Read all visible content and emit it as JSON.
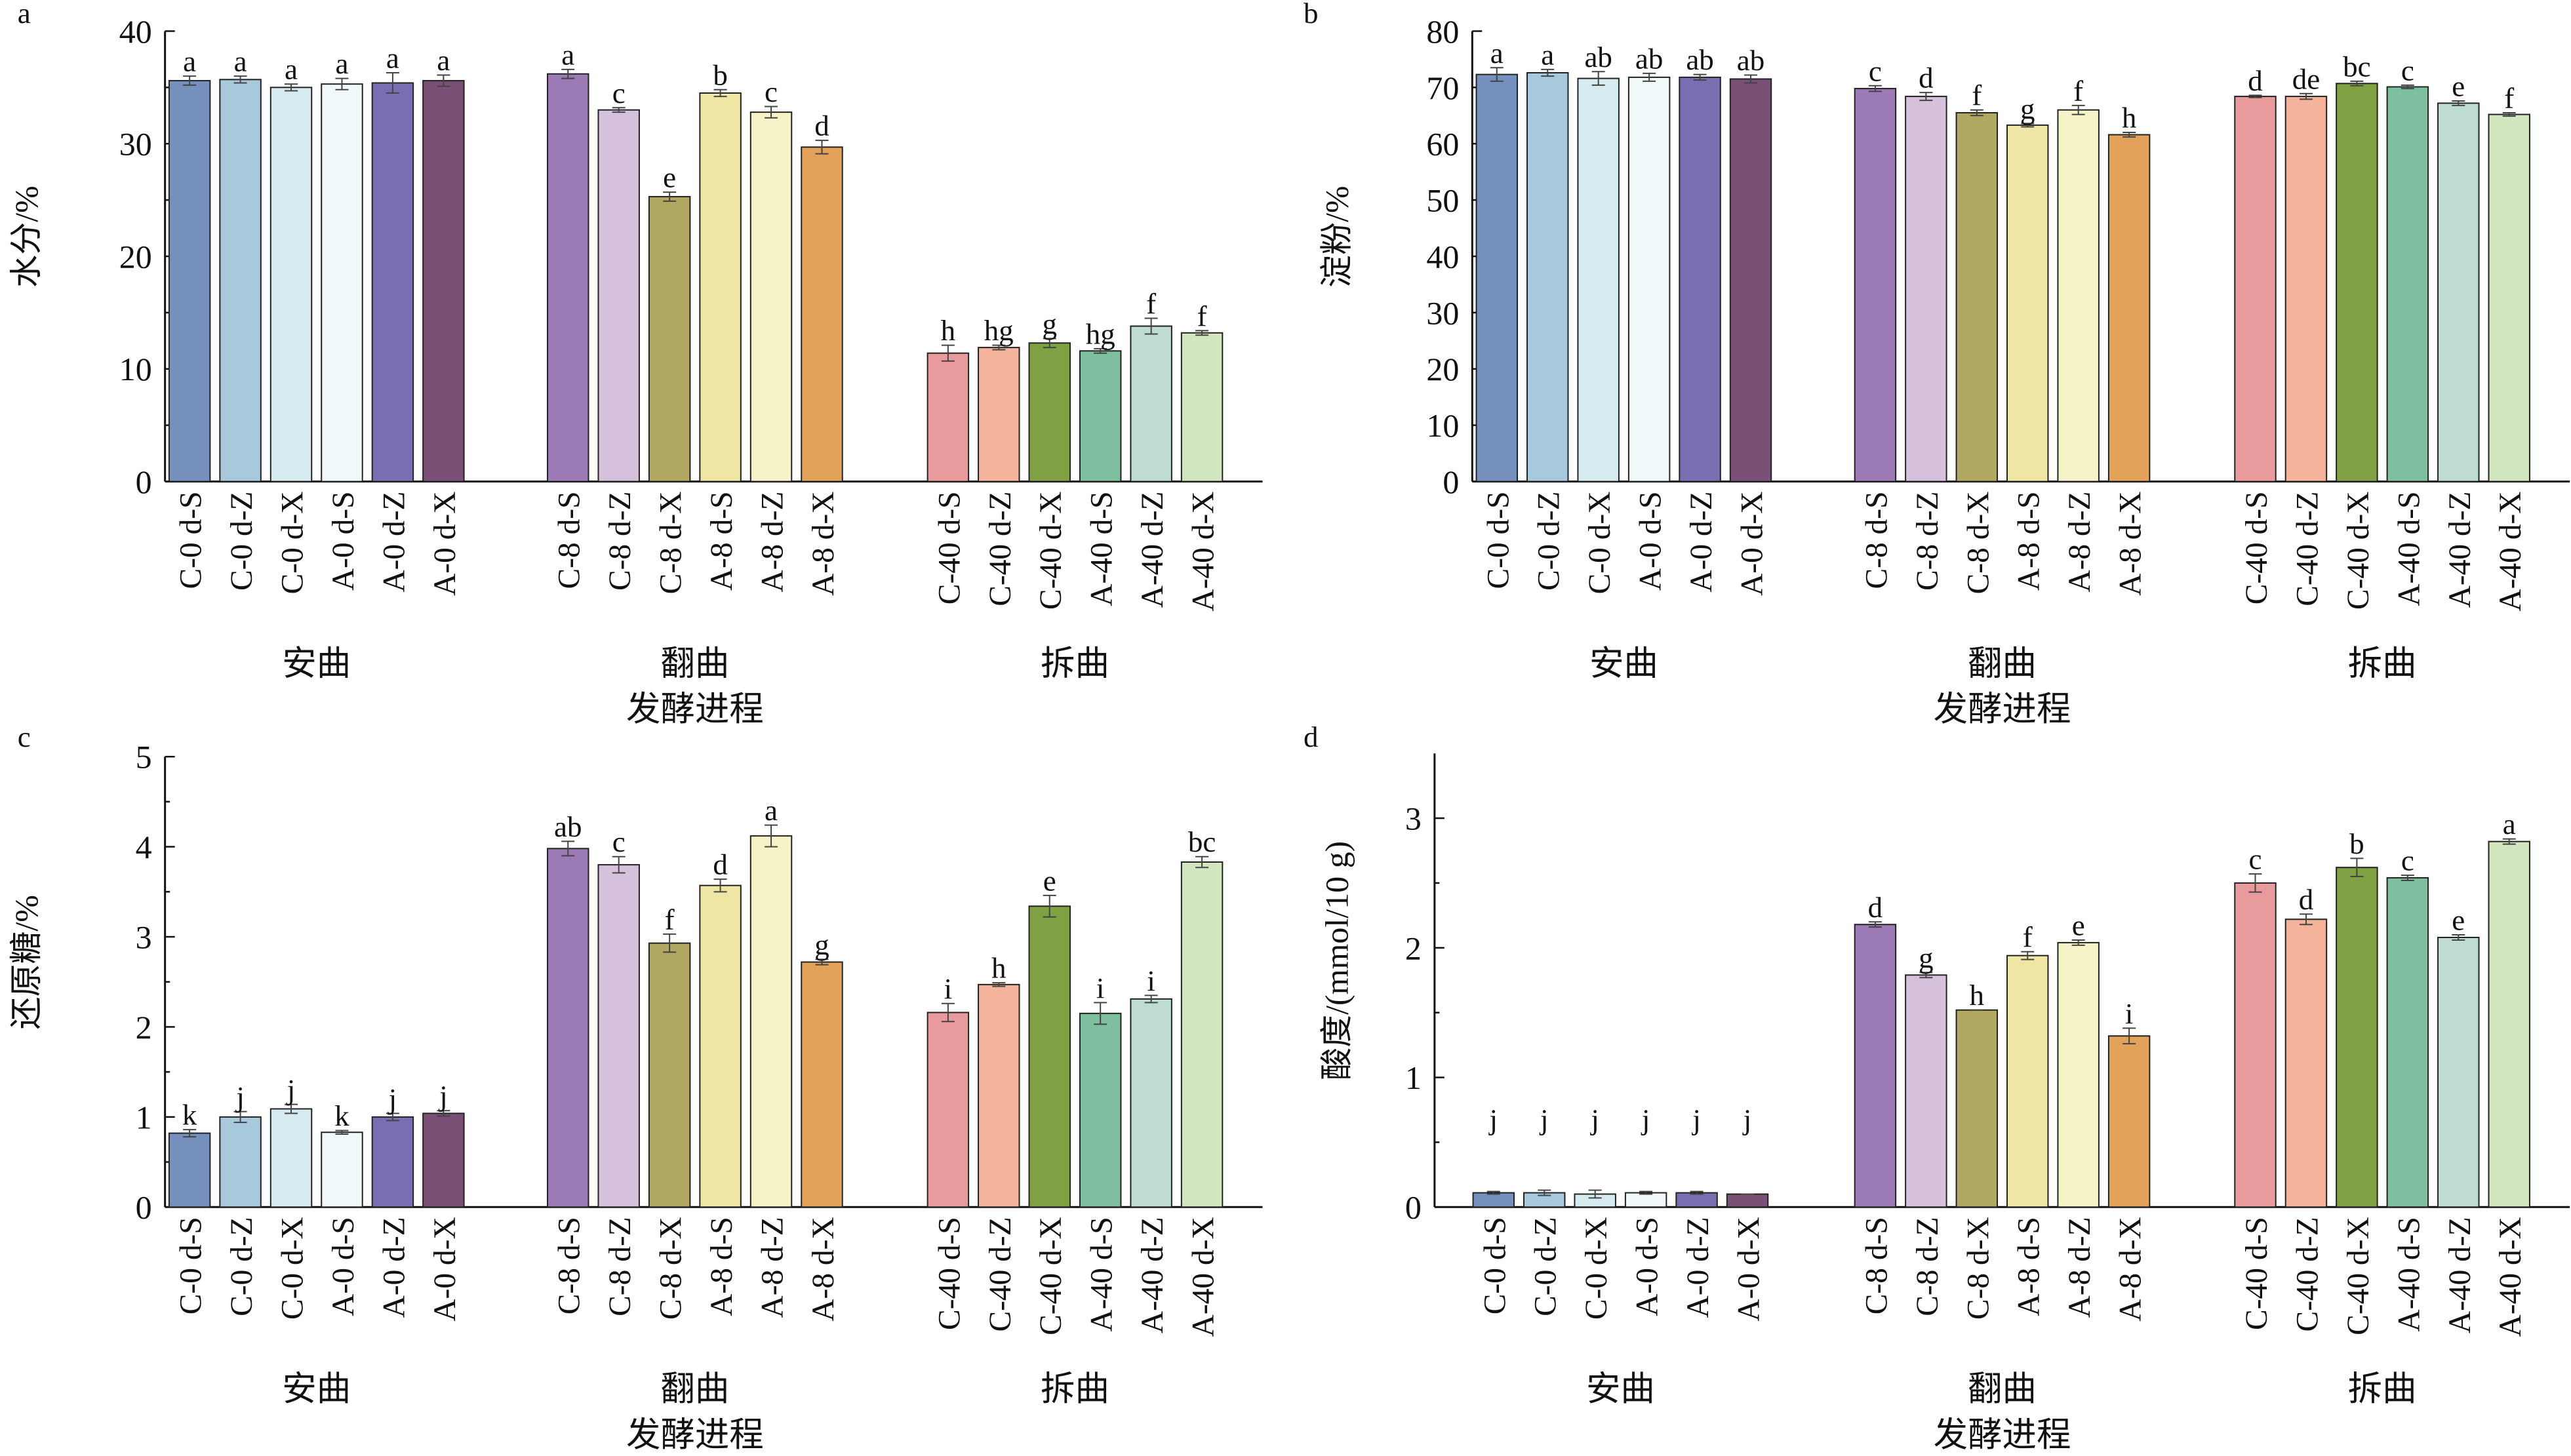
{
  "shared": {
    "categories": [
      "C-0 d-S",
      "C-0 d-Z",
      "C-0 d-X",
      "A-0 d-S",
      "A-0 d-Z",
      "A-0 d-X",
      "C-8 d-S",
      "C-8 d-Z",
      "C-8 d-X",
      "A-8 d-S",
      "A-8 d-Z",
      "A-8 d-X",
      "C-40 d-S",
      "C-40 d-Z",
      "C-40 d-X",
      "A-40 d-S",
      "A-40 d-Z",
      "A-40 d-X"
    ],
    "groups": [
      "安曲",
      "翻曲",
      "拆曲"
    ],
    "colors": [
      "#7590bd",
      "#a8c8dc",
      "#d5ebf0",
      "#f0f8fa",
      "#7a6db0",
      "#7a5076",
      "#9b7ab6",
      "#d6c1dc",
      "#b1a862",
      "#efe6a6",
      "#f4f4c8",
      "#e3a25a",
      "#e89a9c",
      "#f4b49c",
      "#7fa043",
      "#7dbf9f",
      "#bfdcd0",
      "#d2e6c0"
    ]
  },
  "chart_data": [
    {
      "type": "bar",
      "panel_label": "a",
      "xlabel": "发酵进程",
      "ylabel": "水分/%",
      "ylim": [
        0,
        40
      ],
      "yticks": [
        0,
        10,
        20,
        30,
        40
      ],
      "minor_step": 5,
      "grid": false,
      "values": [
        35.6,
        35.7,
        35.0,
        35.3,
        35.4,
        35.6,
        36.2,
        33.0,
        25.3,
        34.5,
        32.8,
        29.7,
        11.4,
        11.9,
        12.3,
        11.6,
        13.8,
        13.2
      ],
      "errors": [
        0.4,
        0.3,
        0.3,
        0.5,
        0.9,
        0.5,
        0.4,
        0.2,
        0.4,
        0.3,
        0.5,
        0.6,
        0.7,
        0.2,
        0.4,
        0.2,
        0.7,
        0.2
      ],
      "letters": [
        "a",
        "a",
        "a",
        "a",
        "a",
        "a",
        "a",
        "c",
        "e",
        "b",
        "c",
        "d",
        "h",
        "hg",
        "g",
        "hg",
        "f",
        "f"
      ]
    },
    {
      "type": "bar",
      "panel_label": "b",
      "xlabel": "发酵进程",
      "ylabel": "淀粉/%",
      "ylim": [
        0,
        80
      ],
      "yticks": [
        0,
        10,
        20,
        30,
        40,
        50,
        60,
        70,
        80
      ],
      "minor_step": null,
      "grid": false,
      "values": [
        72.3,
        72.6,
        71.6,
        71.8,
        71.8,
        71.5,
        69.8,
        68.4,
        65.5,
        63.3,
        66.0,
        61.6,
        68.4,
        68.4,
        70.7,
        70.1,
        67.2,
        65.2
      ],
      "errors": [
        1.2,
        0.6,
        1.2,
        0.7,
        0.5,
        0.7,
        0.5,
        0.7,
        0.5,
        0.3,
        0.8,
        0.4,
        0.2,
        0.5,
        0.4,
        0.3,
        0.4,
        0.3
      ],
      "letters": [
        "a",
        "a",
        "ab",
        "ab",
        "ab",
        "ab",
        "c",
        "d",
        "f",
        "g",
        "f",
        "h",
        "d",
        "de",
        "bc",
        "c",
        "e",
        "f"
      ]
    },
    {
      "type": "bar",
      "panel_label": "c",
      "xlabel": "发酵进程",
      "ylabel": "还原糖/%",
      "ylim": [
        0,
        5
      ],
      "yticks": [
        0,
        1,
        2,
        3,
        4,
        5
      ],
      "minor_step": 0.5,
      "grid": false,
      "values": [
        0.82,
        1.0,
        1.09,
        0.83,
        1.0,
        1.04,
        3.98,
        3.8,
        2.93,
        3.57,
        4.12,
        2.72,
        2.16,
        2.47,
        3.34,
        2.15,
        2.31,
        3.83
      ],
      "errors": [
        0.04,
        0.06,
        0.05,
        0.02,
        0.04,
        0.03,
        0.08,
        0.09,
        0.1,
        0.07,
        0.12,
        0.03,
        0.1,
        0.02,
        0.12,
        0.12,
        0.04,
        0.06
      ],
      "letters": [
        "k",
        "j",
        "j",
        "k",
        "j",
        "j",
        "ab",
        "c",
        "f",
        "d",
        "a",
        "g",
        "i",
        "h",
        "e",
        "i",
        "i",
        "bc"
      ]
    },
    {
      "type": "bar",
      "panel_label": "d",
      "xlabel": "发酵进程",
      "ylabel": "酸度/(mmol/10 g)",
      "ylim": [
        0,
        3.5
      ],
      "yticks": [
        0,
        1,
        2,
        3
      ],
      "minor_step": 0.5,
      "grid": false,
      "values": [
        0.11,
        0.11,
        0.1,
        0.11,
        0.11,
        0.1,
        2.18,
        1.79,
        1.52,
        1.94,
        2.04,
        1.32,
        2.5,
        2.22,
        2.62,
        2.54,
        2.08,
        2.82
      ],
      "errors": [
        0.01,
        0.02,
        0.03,
        0.01,
        0.01,
        0.0,
        0.02,
        0.02,
        0.0,
        0.03,
        0.02,
        0.06,
        0.07,
        0.04,
        0.07,
        0.02,
        0.02,
        0.02
      ],
      "letters": [
        "j",
        "j",
        "j",
        "j",
        "j",
        "j",
        "d",
        "g",
        "h",
        "f",
        "e",
        "i",
        "c",
        "d",
        "b",
        "c",
        "e",
        "a"
      ]
    }
  ]
}
